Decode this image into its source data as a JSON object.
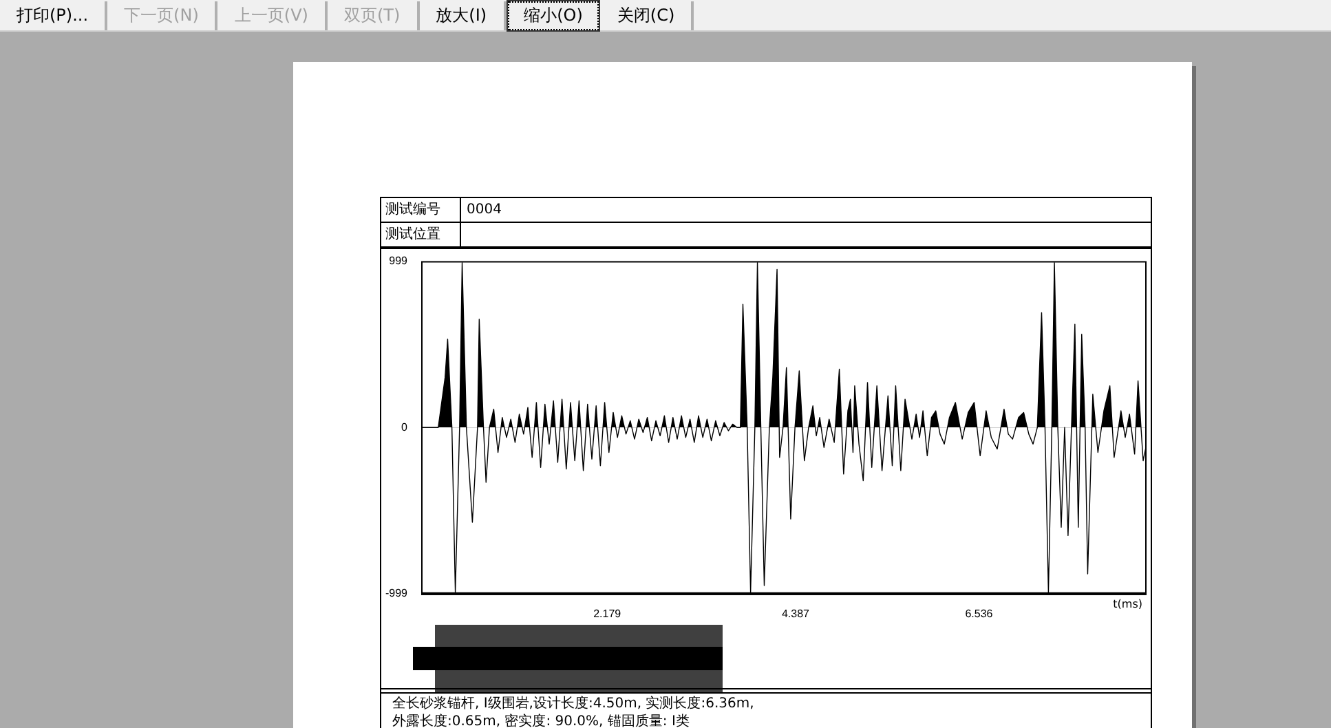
{
  "chart_data": {
    "type": "area",
    "annotations": [
      "打印(P)...",
      "下一页(N)",
      "上一页(V)",
      "双页(T)",
      "放大(I)",
      "缩小(O)",
      "关闭(C)",
      "测试编号",
      "0004",
      "测试位置",
      "全长砂浆锚杆, I级围岩,设计长度:4.50m, 实测长度:6.36m,",
      "外露长度:0.65m, 密实度: 90.0%, 锚固质量: I类"
    ],
    "xlabel": "t(ms)",
    "color": "#000000",
    "x": [
      0,
      0.2,
      0.28,
      0.31,
      0.36,
      0.4,
      0.45,
      0.48,
      0.53,
      0.6,
      0.66,
      0.68,
      0.73,
      0.76,
      0.8,
      0.85,
      0.9,
      0.95,
      1.0,
      1.05,
      1.1,
      1.15,
      1.2,
      1.25,
      1.3,
      1.35,
      1.4,
      1.45,
      1.5,
      1.55,
      1.6,
      1.65,
      1.7,
      1.75,
      1.8,
      1.85,
      1.9,
      1.95,
      2.0,
      2.05,
      2.1,
      2.15,
      2.2,
      2.25,
      2.3,
      2.35,
      2.4,
      2.45,
      2.5,
      2.55,
      2.6,
      2.65,
      2.7,
      2.75,
      2.8,
      2.85,
      2.9,
      2.95,
      3.0,
      3.05,
      3.1,
      3.15,
      3.2,
      3.25,
      3.3,
      3.35,
      3.4,
      3.45,
      3.5,
      3.55,
      3.6,
      3.65,
      3.7,
      3.74,
      3.77,
      3.82,
      3.86,
      3.91,
      3.94,
      3.98,
      4.02,
      4.08,
      4.12,
      4.17,
      4.2,
      4.24,
      4.28,
      4.33,
      4.38,
      4.43,
      4.49,
      4.54,
      4.59,
      4.63,
      4.67,
      4.72,
      4.78,
      4.84,
      4.9,
      4.95,
      5.0,
      5.03,
      5.06,
      5.08,
      5.13,
      5.18,
      5.23,
      5.28,
      5.34,
      5.4,
      5.47,
      5.52,
      5.56,
      5.62,
      5.67,
      5.75,
      5.8,
      5.84,
      5.88,
      5.93,
      5.98,
      6.03,
      6.08,
      6.13,
      6.19,
      6.26,
      6.34,
      6.41,
      6.48,
      6.55,
      6.62,
      6.68,
      6.75,
      6.83,
      6.88,
      6.93,
      7.0,
      7.06,
      7.12,
      7.17,
      7.22,
      7.27,
      7.31,
      7.35,
      7.39,
      7.42,
      7.46,
      7.5,
      7.54,
      7.58,
      7.62,
      7.66,
      7.7,
      7.74,
      7.78,
      7.81,
      7.87,
      7.93,
      8.0,
      8.07,
      8.12,
      8.2,
      8.25,
      8.3,
      8.36,
      8.4,
      8.46,
      8.5
    ],
    "values": [
      0,
      0,
      300,
      530,
      0,
      -990,
      0,
      990,
      0,
      -570,
      0,
      650,
      0,
      -330,
      0,
      110,
      -150,
      60,
      -60,
      50,
      -90,
      80,
      -40,
      120,
      -180,
      150,
      -240,
      140,
      -100,
      160,
      -210,
      170,
      -250,
      150,
      -200,
      160,
      -260,
      140,
      -190,
      130,
      -230,
      150,
      -150,
      90,
      -60,
      70,
      -40,
      40,
      -70,
      50,
      -30,
      60,
      -80,
      40,
      -50,
      70,
      -90,
      60,
      -70,
      70,
      -60,
      50,
      -90,
      70,
      -60,
      50,
      -80,
      40,
      -50,
      30,
      -20,
      20,
      0,
      0,
      740,
      0,
      -990,
      0,
      990,
      0,
      -950,
      0,
      300,
      950,
      -180,
      0,
      360,
      -550,
      0,
      340,
      -200,
      0,
      130,
      -50,
      60,
      -120,
      50,
      -90,
      350,
      -280,
      100,
      170,
      -150,
      250,
      -100,
      -320,
      270,
      -240,
      250,
      -260,
      190,
      -230,
      250,
      -260,
      170,
      -70,
      80,
      -60,
      100,
      -170,
      60,
      100,
      -40,
      -100,
      60,
      150,
      -70,
      90,
      150,
      -170,
      100,
      -60,
      -130,
      110,
      -40,
      -70,
      60,
      90,
      -40,
      -100,
      0,
      690,
      0,
      -990,
      0,
      990,
      0,
      -600,
      0,
      -650,
      0,
      620,
      -600,
      560,
      0,
      -880,
      200,
      -150,
      100,
      250,
      -180,
      100,
      -60,
      80,
      -160,
      280,
      -200,
      -100
    ],
    "xlim": [
      0,
      8.5
    ],
    "xticks": [
      2.179,
      4.387,
      6.536
    ],
    "ylim": [
      -999,
      999
    ],
    "yticks": [
      999,
      0,
      -999
    ]
  }
}
